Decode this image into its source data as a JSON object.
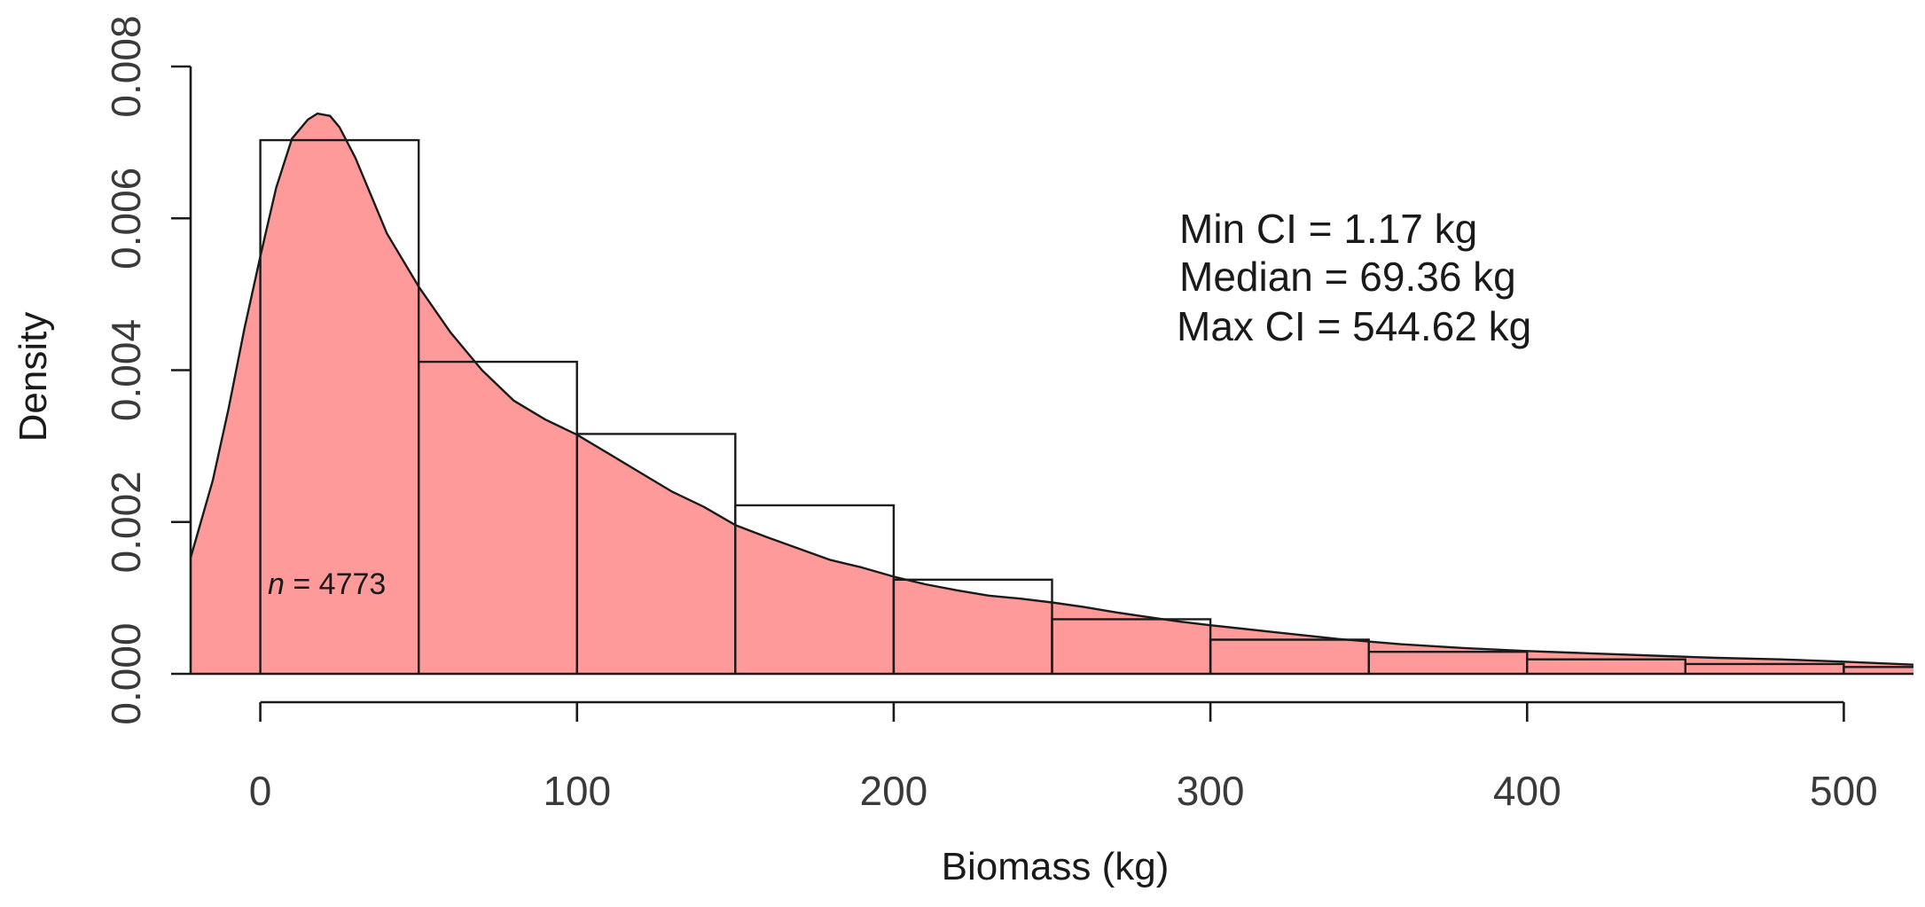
{
  "chart_data": {
    "type": "histogram",
    "xlabel": "Biomass (kg)",
    "ylabel": "Density",
    "xlim": [
      -22,
      522
    ],
    "ylim": [
      0,
      0.008
    ],
    "x_ticks": [
      0,
      100,
      200,
      300,
      400,
      500
    ],
    "x_tick_labels": [
      "0",
      "100",
      "200",
      "300",
      "400",
      "500"
    ],
    "y_ticks": [
      0,
      0.002,
      0.004,
      0.006,
      0.008
    ],
    "y_tick_labels": [
      "0.000",
      "0.002",
      "0.004",
      "0.006",
      "0.008"
    ],
    "histogram": {
      "bin_width": 50,
      "bins": [
        {
          "start": 0,
          "end": 50,
          "density": 0.00703
        },
        {
          "start": 50,
          "end": 100,
          "density": 0.00411
        },
        {
          "start": 100,
          "end": 150,
          "density": 0.00316
        },
        {
          "start": 150,
          "end": 200,
          "density": 0.00222
        },
        {
          "start": 200,
          "end": 250,
          "density": 0.00124
        },
        {
          "start": 250,
          "end": 300,
          "density": 0.00072
        },
        {
          "start": 300,
          "end": 350,
          "density": 0.00045
        },
        {
          "start": 350,
          "end": 400,
          "density": 0.00029
        },
        {
          "start": 400,
          "end": 450,
          "density": 0.00019
        },
        {
          "start": 450,
          "end": 500,
          "density": 0.00013
        },
        {
          "start": 500,
          "end": 550,
          "density": 9e-05
        }
      ]
    },
    "density_curve": {
      "x": [
        -22,
        -15,
        -10,
        -5,
        0,
        5,
        10,
        15,
        18,
        22,
        25,
        30,
        35,
        40,
        50,
        60,
        70,
        80,
        90,
        100,
        110,
        120,
        130,
        140,
        150,
        160,
        170,
        180,
        190,
        200,
        210,
        220,
        230,
        240,
        250,
        260,
        270,
        280,
        290,
        300,
        320,
        340,
        360,
        380,
        400,
        420,
        440,
        460,
        480,
        500,
        522
      ],
      "y": [
        0.00153,
        0.00255,
        0.0035,
        0.00455,
        0.0055,
        0.0064,
        0.00705,
        0.0073,
        0.00738,
        0.00735,
        0.0072,
        0.0068,
        0.0063,
        0.0058,
        0.0051,
        0.0045,
        0.004,
        0.0036,
        0.00335,
        0.00315,
        0.0029,
        0.00265,
        0.0024,
        0.0022,
        0.00196,
        0.0018,
        0.00165,
        0.0015,
        0.0014,
        0.00128,
        0.00118,
        0.0011,
        0.00103,
        0.00099,
        0.00094,
        0.00088,
        0.00081,
        0.00075,
        0.00069,
        0.00064,
        0.00055,
        0.00046,
        0.00039,
        0.00034,
        0.0003,
        0.00027,
        0.00024,
        0.00021,
        0.00019,
        0.00016,
        0.00012
      ]
    },
    "colors": {
      "fill": "#ff9a9a",
      "outline": "#1a1a1a"
    }
  },
  "annotations": {
    "min_ci": "Min CI = 1.17 kg",
    "median": "Median = 69.36 kg",
    "max_ci": "Max CI  = 544.62 kg",
    "n_prefix": "n",
    "n_suffix": " = 4773"
  }
}
